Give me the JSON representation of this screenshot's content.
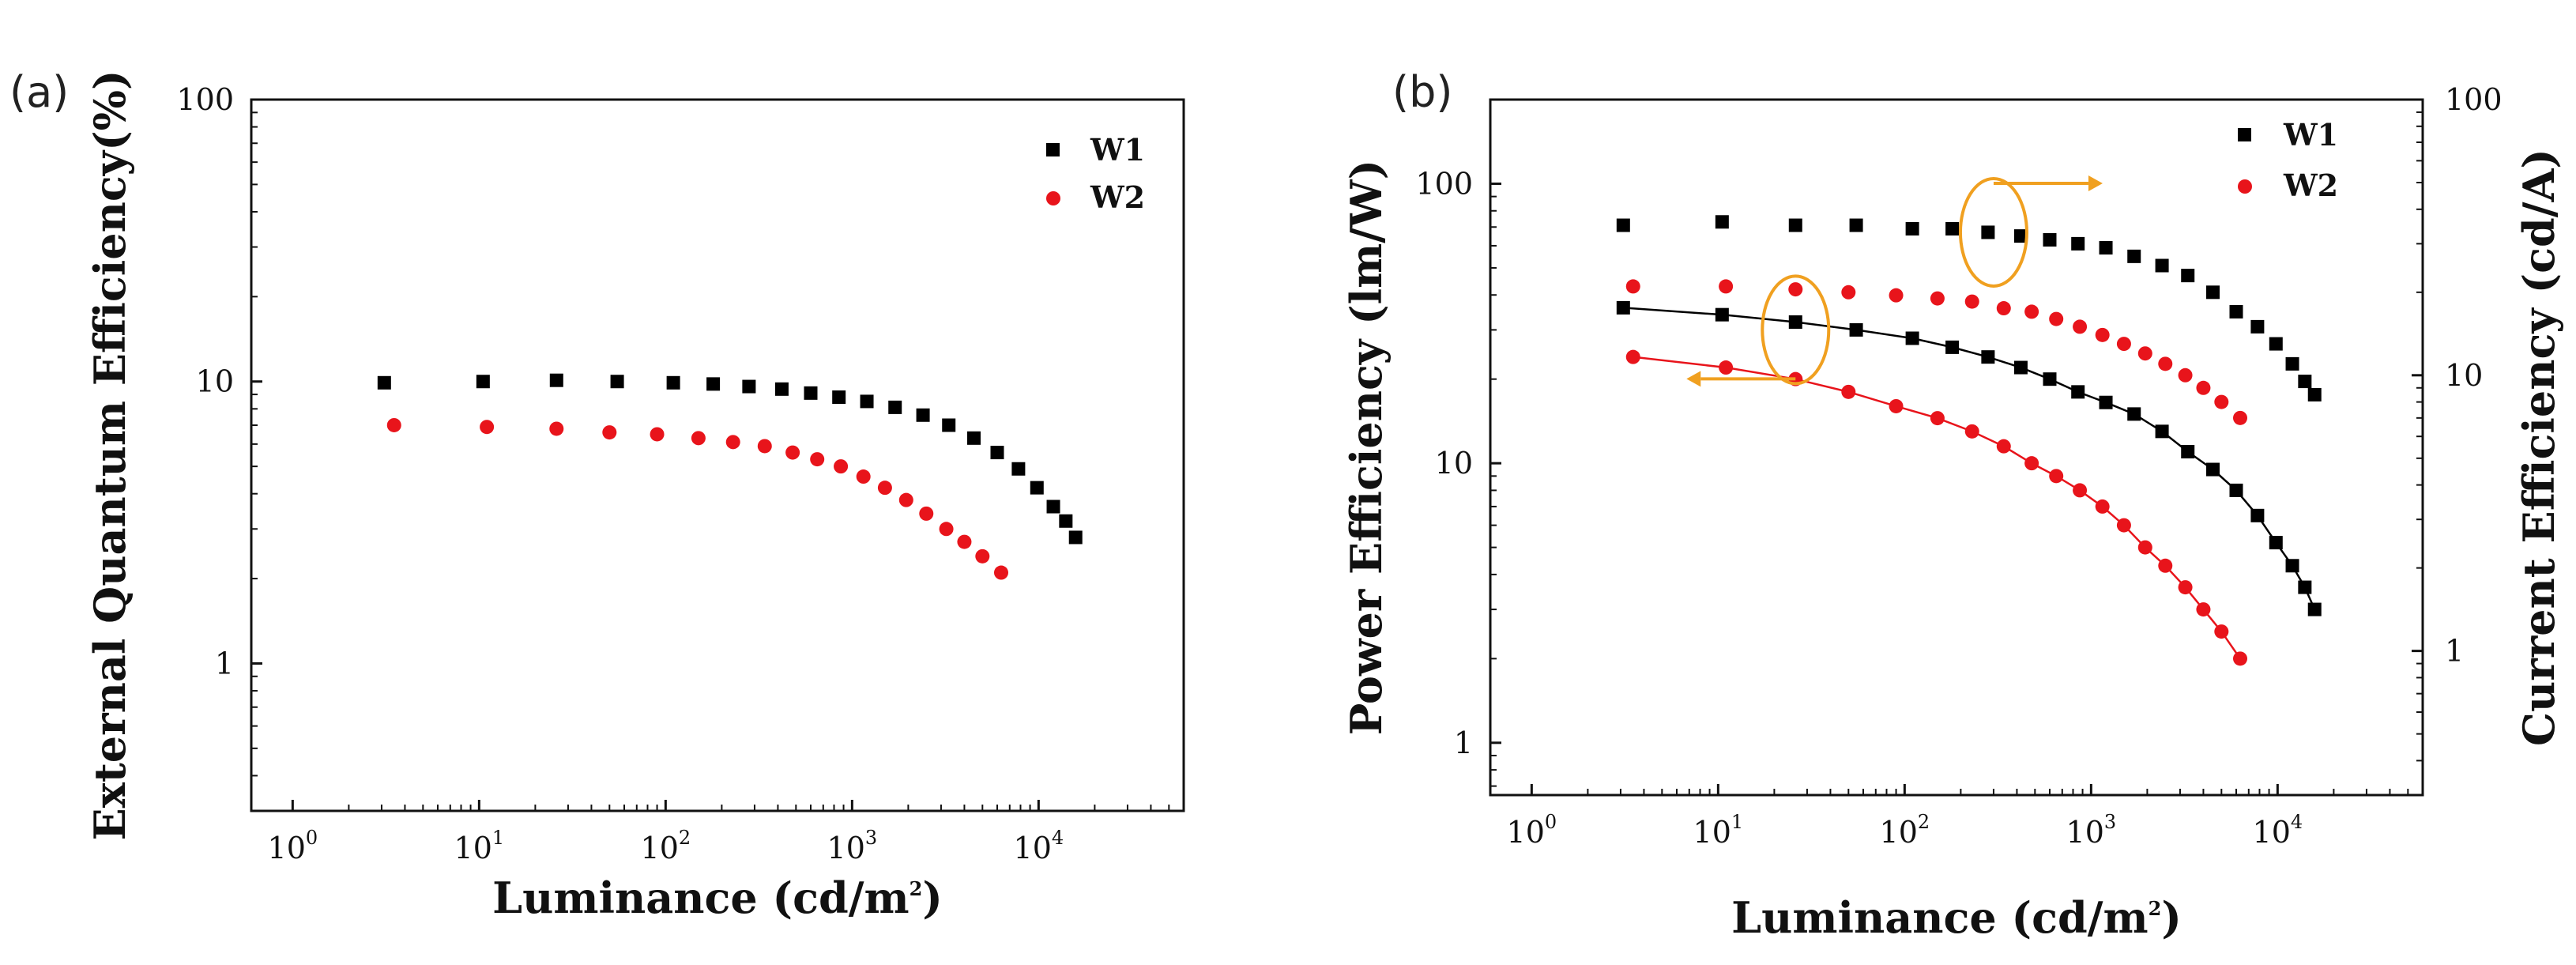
{
  "chart_data": [
    {
      "panel": "(a)",
      "type": "scatter",
      "x_scale": "log",
      "y_scale": "log",
      "xlim": [
        0.6,
        60000
      ],
      "ylim": [
        0.3,
        100
      ],
      "xlabel": "Luminance (cd/m2)",
      "xlabel_parts": [
        "Luminance (cd/m",
        "2",
        ")"
      ],
      "ylabel": "External Quantum Efficiency(%)",
      "x_ticks": [
        {
          "base": "10",
          "exp": "0",
          "v": 1
        },
        {
          "base": "10",
          "exp": "1",
          "v": 10
        },
        {
          "base": "10",
          "exp": "2",
          "v": 100
        },
        {
          "base": "10",
          "exp": "3",
          "v": 1000
        },
        {
          "base": "10",
          "exp": "4",
          "v": 10000
        }
      ],
      "y_ticks": [
        {
          "label": "1",
          "v": 1
        },
        {
          "label": "10",
          "v": 10
        },
        {
          "label": "100",
          "v": 100
        }
      ],
      "legend": {
        "position": "top-right",
        "entries": [
          "W1",
          "W2"
        ]
      },
      "series": [
        {
          "name": "W1",
          "marker": "square",
          "color": "#000000",
          "points": [
            [
              3.1,
              9.9
            ],
            [
              10.5,
              10.0
            ],
            [
              26,
              10.1
            ],
            [
              55,
              10.0
            ],
            [
              110,
              9.9
            ],
            [
              180,
              9.8
            ],
            [
              280,
              9.6
            ],
            [
              420,
              9.4
            ],
            [
              600,
              9.1
            ],
            [
              850,
              8.8
            ],
            [
              1200,
              8.5
            ],
            [
              1700,
              8.1
            ],
            [
              2400,
              7.6
            ],
            [
              3300,
              7.0
            ],
            [
              4500,
              6.3
            ],
            [
              6000,
              5.6
            ],
            [
              7800,
              4.9
            ],
            [
              9800,
              4.2
            ],
            [
              12000,
              3.6
            ],
            [
              14000,
              3.2
            ],
            [
              15800,
              2.8
            ]
          ]
        },
        {
          "name": "W2",
          "marker": "circle",
          "color": "#e8141b",
          "points": [
            [
              3.5,
              7.0
            ],
            [
              11,
              6.9
            ],
            [
              26,
              6.8
            ],
            [
              50,
              6.6
            ],
            [
              90,
              6.5
            ],
            [
              150,
              6.3
            ],
            [
              230,
              6.1
            ],
            [
              340,
              5.9
            ],
            [
              480,
              5.6
            ],
            [
              650,
              5.3
            ],
            [
              870,
              5.0
            ],
            [
              1150,
              4.6
            ],
            [
              1500,
              4.2
            ],
            [
              1950,
              3.8
            ],
            [
              2500,
              3.4
            ],
            [
              3200,
              3.0
            ],
            [
              4000,
              2.7
            ],
            [
              5000,
              2.4
            ],
            [
              6300,
              2.1
            ]
          ]
        }
      ]
    },
    {
      "panel": "(b)",
      "type": "scatter",
      "x_scale": "log",
      "y_scale": "log",
      "xlim": [
        0.6,
        60000
      ],
      "ylim": [
        0.65,
        200
      ],
      "ylim_right": [
        0.3,
        100
      ],
      "xlabel": "Luminance (cd/m2)",
      "xlabel_parts": [
        "Luminance (cd/m",
        "2",
        ")"
      ],
      "ylabel": "Power Efficiency (lm/W)",
      "ylabel_right": "Current Efficiency (cd/A)",
      "x_ticks": [
        {
          "base": "10",
          "exp": "0",
          "v": 1
        },
        {
          "base": "10",
          "exp": "1",
          "v": 10
        },
        {
          "base": "10",
          "exp": "2",
          "v": 100
        },
        {
          "base": "10",
          "exp": "3",
          "v": 1000
        },
        {
          "base": "10",
          "exp": "4",
          "v": 10000
        }
      ],
      "y_ticks": [
        {
          "label": "1",
          "v": 1
        },
        {
          "label": "10",
          "v": 10
        },
        {
          "label": "100",
          "v": 100
        }
      ],
      "y_ticks_right": [
        {
          "label": "1",
          "v": 1
        },
        {
          "label": "10",
          "v": 10
        },
        {
          "label": "100",
          "v": 100
        }
      ],
      "legend": {
        "position": "top-right",
        "entries": [
          "W1",
          "W2"
        ]
      },
      "annotations": [
        {
          "type": "ellipse-arrow",
          "direction": "right",
          "meaning": "current efficiency on right axis",
          "center": [
            300,
            33
          ]
        },
        {
          "type": "ellipse-arrow",
          "direction": "left",
          "meaning": "power efficiency on left axis",
          "center": [
            26,
            30
          ]
        }
      ],
      "series": [
        {
          "name": "W1 current efficiency",
          "axis": "right",
          "marker": "square",
          "color": "#000000",
          "points": [
            [
              3.1,
              35
            ],
            [
              10.5,
              36
            ],
            [
              26,
              35
            ],
            [
              55,
              35
            ],
            [
              110,
              34
            ],
            [
              180,
              34
            ],
            [
              280,
              33
            ],
            [
              420,
              32
            ],
            [
              600,
              31
            ],
            [
              850,
              30
            ],
            [
              1200,
              29
            ],
            [
              1700,
              27
            ],
            [
              2400,
              25
            ],
            [
              3300,
              23
            ],
            [
              4500,
              20
            ],
            [
              6000,
              17
            ],
            [
              7800,
              15
            ],
            [
              9800,
              13
            ],
            [
              12000,
              11
            ],
            [
              14000,
              9.5
            ],
            [
              15800,
              8.5
            ]
          ]
        },
        {
          "name": "W2 current efficiency",
          "axis": "right",
          "marker": "circle",
          "color": "#e8141b",
          "points": [
            [
              3.5,
              21
            ],
            [
              11,
              21
            ],
            [
              26,
              20.5
            ],
            [
              50,
              20
            ],
            [
              90,
              19.5
            ],
            [
              150,
              19
            ],
            [
              230,
              18.5
            ],
            [
              340,
              17.5
            ],
            [
              480,
              17
            ],
            [
              650,
              16
            ],
            [
              870,
              15
            ],
            [
              1150,
              14
            ],
            [
              1500,
              13
            ],
            [
              1950,
              12
            ],
            [
              2500,
              11
            ],
            [
              3200,
              10
            ],
            [
              4000,
              9
            ],
            [
              5000,
              8
            ],
            [
              6300,
              7
            ]
          ]
        },
        {
          "name": "W1 power efficiency",
          "axis": "left",
          "marker": "square",
          "color": "#000000",
          "line": true,
          "points": [
            [
              3.1,
              36
            ],
            [
              10.5,
              34
            ],
            [
              26,
              32
            ],
            [
              55,
              30
            ],
            [
              110,
              28
            ],
            [
              180,
              26
            ],
            [
              280,
              24
            ],
            [
              420,
              22
            ],
            [
              600,
              20
            ],
            [
              850,
              18
            ],
            [
              1200,
              16.5
            ],
            [
              1700,
              15
            ],
            [
              2400,
              13
            ],
            [
              3300,
              11
            ],
            [
              4500,
              9.5
            ],
            [
              6000,
              8
            ],
            [
              7800,
              6.5
            ],
            [
              9800,
              5.2
            ],
            [
              12000,
              4.3
            ],
            [
              14000,
              3.6
            ],
            [
              15800,
              3.0
            ]
          ]
        },
        {
          "name": "W2 power efficiency",
          "axis": "left",
          "marker": "circle",
          "color": "#e8141b",
          "line": true,
          "points": [
            [
              3.5,
              24
            ],
            [
              11,
              22
            ],
            [
              26,
              20
            ],
            [
              50,
              18
            ],
            [
              90,
              16
            ],
            [
              150,
              14.5
            ],
            [
              230,
              13
            ],
            [
              340,
              11.5
            ],
            [
              480,
              10
            ],
            [
              650,
              9
            ],
            [
              870,
              8
            ],
            [
              1150,
              7
            ],
            [
              1500,
              6
            ],
            [
              1950,
              5
            ],
            [
              2500,
              4.3
            ],
            [
              3200,
              3.6
            ],
            [
              4000,
              3.0
            ],
            [
              5000,
              2.5
            ],
            [
              6300,
              2.0
            ]
          ]
        }
      ]
    }
  ]
}
